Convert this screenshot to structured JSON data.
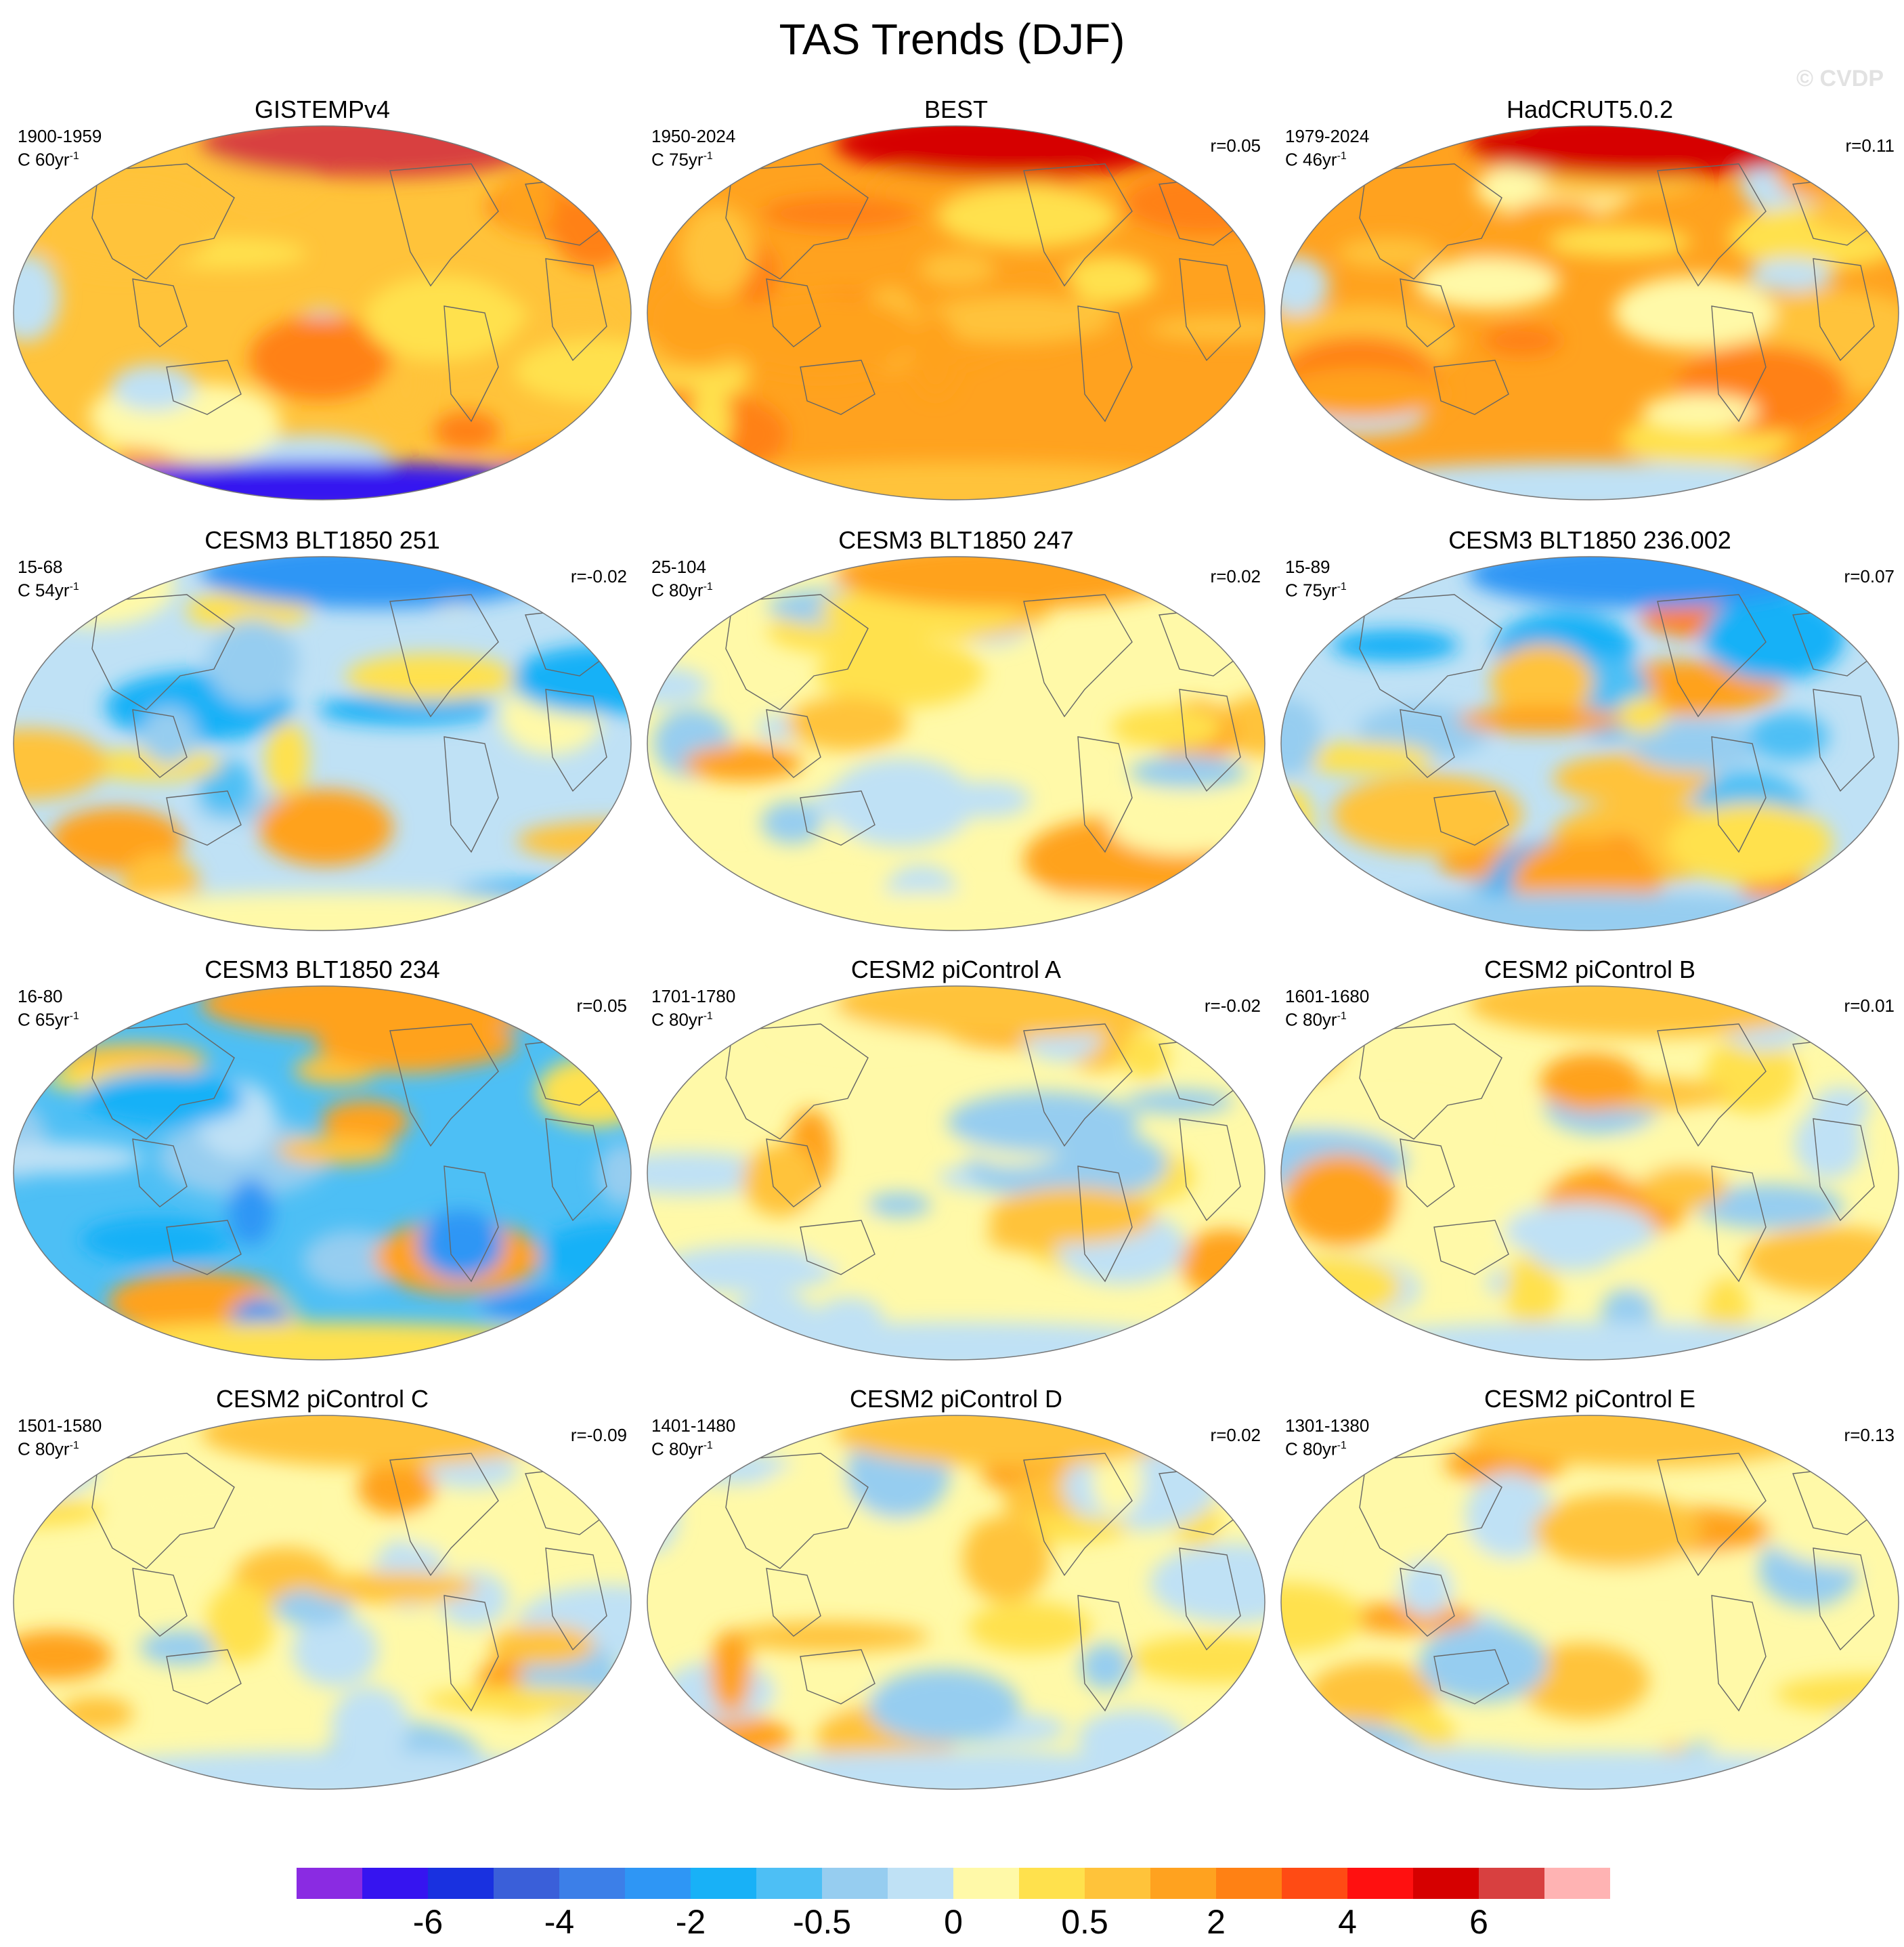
{
  "title": "TAS Trends (DJF)",
  "watermark": "© CVDP",
  "chart_data": {
    "type": "heatmap",
    "projection": "Robinson (global, Pacific-centered)",
    "variable": "TAS",
    "season": "DJF",
    "units": "C per period",
    "panels": [
      {
        "title": "GISTEMPv4",
        "period": "1900-1959",
        "scale_unit": "C 60yr",
        "r": "",
        "style": "obs1"
      },
      {
        "title": "BEST",
        "period": "1950-2024",
        "scale_unit": "C 75yr",
        "r": "r=0.05",
        "style": "warm"
      },
      {
        "title": "HadCRUT5.0.2",
        "period": "1979-2024",
        "scale_unit": "C 46yr",
        "r": "r=0.11",
        "style": "warm2"
      },
      {
        "title": "CESM3 BLT1850 251",
        "period": "15-68",
        "scale_unit": "C 54yr",
        "r": "r=-0.02",
        "style": "cool"
      },
      {
        "title": "CESM3 BLT1850 247",
        "period": "25-104",
        "scale_unit": "C 80yr",
        "r": "r=0.02",
        "style": "warmnorth"
      },
      {
        "title": "CESM3 BLT1850 236.002",
        "period": "15-89",
        "scale_unit": "C 75yr",
        "r": "r=0.07",
        "style": "mixed"
      },
      {
        "title": "CESM3 BLT1850 234",
        "period": "16-80",
        "scale_unit": "C 65yr",
        "r": "r=0.05",
        "style": "cool2"
      },
      {
        "title": "CESM2 piControl A",
        "period": "1701-1780",
        "scale_unit": "C 80yr",
        "r": "r=-0.02",
        "style": "neutral"
      },
      {
        "title": "CESM2 piControl B",
        "period": "1601-1680",
        "scale_unit": "C 80yr",
        "r": "r=0.01",
        "style": "neutral"
      },
      {
        "title": "CESM2 piControl C",
        "period": "1501-1580",
        "scale_unit": "C 80yr",
        "r": "r=-0.09",
        "style": "neutral"
      },
      {
        "title": "CESM2 piControl D",
        "period": "1401-1480",
        "scale_unit": "C 80yr",
        "r": "r=0.02",
        "style": "neutral"
      },
      {
        "title": "CESM2 piControl E",
        "period": "1301-1380",
        "scale_unit": "C 80yr",
        "r": "r=0.13",
        "style": "neutral"
      }
    ],
    "colorbar": {
      "colors": [
        "#8a2be2",
        "#3614f0",
        "#1931e0",
        "#3a5fd9",
        "#3c7fe8",
        "#2e96f5",
        "#18b1f7",
        "#4dbff5",
        "#96cdf0",
        "#bfe1f5",
        "#fff9a8",
        "#ffe14d",
        "#ffc33a",
        "#ffa21f",
        "#ff8114",
        "#ff4b14",
        "#ff1010",
        "#d60000",
        "#d84040",
        "#ffb3b3"
      ],
      "tick_labels": [
        "-6",
        "-4",
        "-2",
        "-0.5",
        "0",
        "0.5",
        "2",
        "4",
        "6"
      ],
      "tick_positions_boundary_index": [
        2,
        4,
        6,
        8,
        10,
        12,
        14,
        16,
        18
      ]
    }
  }
}
